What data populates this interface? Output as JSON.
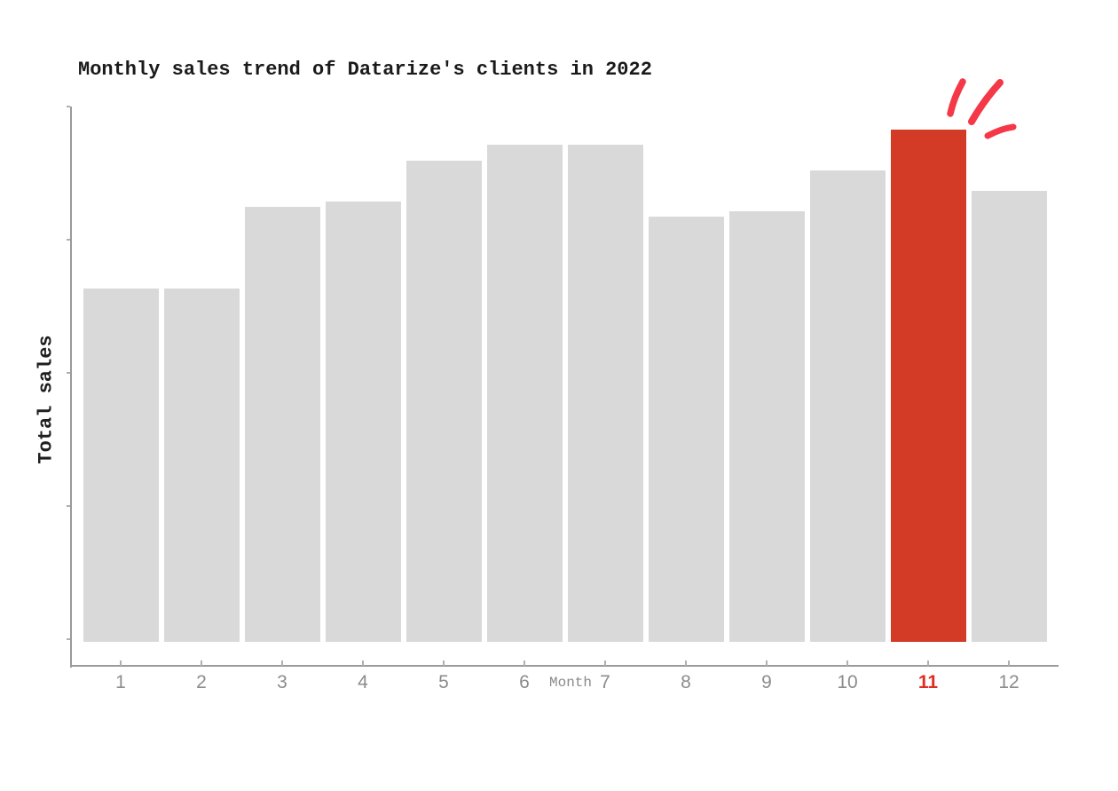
{
  "page": {
    "background": "#ffffff"
  },
  "chart_data": {
    "type": "bar",
    "title": "Monthly sales trend of Datarize's clients in 2022",
    "categories": [
      "1",
      "2",
      "3",
      "4",
      "5",
      "6",
      "7",
      "8",
      "9",
      "10",
      "11",
      "12"
    ],
    "values": [
      69,
      69,
      85,
      86,
      94,
      97,
      97,
      83,
      84,
      92,
      100,
      88
    ],
    "xlabel": "Month",
    "ylabel": "Total sales",
    "ylim": [
      0,
      105
    ],
    "y_tick_labels_shown": false,
    "grid": false,
    "legend": false,
    "bar_color": "#d9d9d9",
    "highlight": {
      "category": "11",
      "bar_color": "#d33b26",
      "tick_color": "#e02d23"
    },
    "values_note": "relative bar heights as % of tallest bar (month 11); y-axis has no numeric labels"
  },
  "annotations": {
    "sparkle": {
      "label": "hand-drawn emphasis strokes above bar 11",
      "color": "#f43848"
    }
  },
  "colors": {
    "axis": "#9a9a9a",
    "tick_mark": "#b0b0b0",
    "tick_label": "#8c8c8c",
    "title_text": "#1a1a1a"
  }
}
